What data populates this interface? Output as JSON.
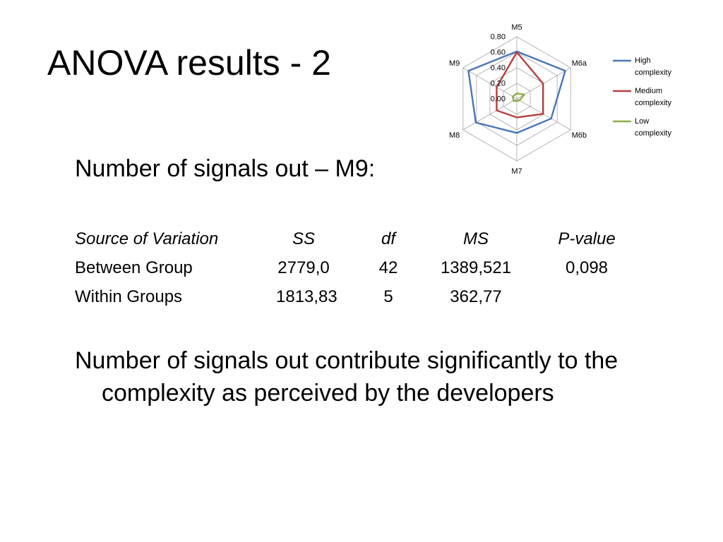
{
  "slide": {
    "title": "ANOVA results - 2",
    "subtitle": "Number of signals out – M9:",
    "conclusion": "Number of signals out contribute significantly to the complexity as perceived by the developers"
  },
  "table": {
    "headers": [
      "Source of Variation",
      "SS",
      "df",
      "MS",
      "P-value"
    ],
    "rows": [
      [
        "Between Group",
        "2779,0",
        "42",
        "1389,521",
        "0,098"
      ],
      [
        "Within Groups",
        "1813,83",
        "5",
        "362,77",
        ""
      ]
    ]
  },
  "chart_data": {
    "type": "radar",
    "axes": [
      "M5",
      "M6a",
      "M6b",
      "M7",
      "M8",
      "M9"
    ],
    "r_ticks": [
      "0.00",
      "0.20",
      "0.40",
      "0.60",
      "0.80"
    ],
    "rmax": 0.8,
    "series": [
      {
        "name": "High complexity",
        "color": "#4a76b5",
        "values": [
          0.61,
          0.72,
          0.51,
          0.44,
          0.61,
          0.72
        ]
      },
      {
        "name": "Medium complexity",
        "color": "#b5403f",
        "values": [
          0.6,
          0.39,
          0.39,
          0.24,
          0.3,
          0.3
        ]
      },
      {
        "name": "Low complexity",
        "color": "#8dae45",
        "values": [
          0.07,
          0.11,
          0.04,
          0.03,
          0.05,
          0.06
        ]
      }
    ]
  }
}
